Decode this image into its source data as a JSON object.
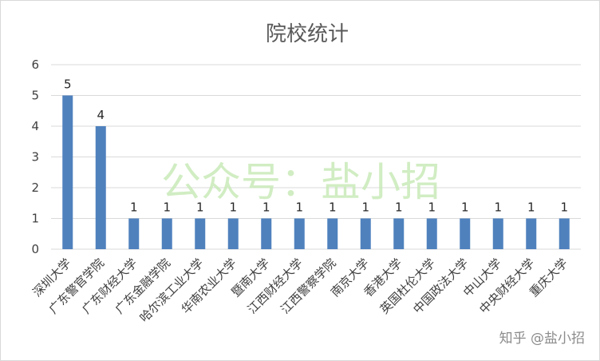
{
  "chart_data": {
    "type": "bar",
    "title": "院校统计",
    "categories": [
      "深圳大学",
      "广东警官学院",
      "广东财经大学",
      "广东金融学院",
      "哈尔滨工业大学",
      "华南农业大学",
      "暨南大学",
      "江西财经大学",
      "江西警察学院",
      "南京大学",
      "香港大学",
      "英国杜伦大学",
      "中国政法大学",
      "中山大学",
      "中央财经大学",
      "重庆大学"
    ],
    "values": [
      5,
      4,
      1,
      1,
      1,
      1,
      1,
      1,
      1,
      1,
      1,
      1,
      1,
      1,
      1,
      1
    ],
    "xlabel": "",
    "ylabel": "",
    "ylim": [
      0,
      6
    ],
    "yticks": [
      0,
      1,
      2,
      3,
      4,
      5,
      6
    ],
    "grid": true,
    "legend": "none",
    "bar_color": "#4f81bd",
    "grid_color": "#d9d9d9"
  },
  "watermark": {
    "text": "公众号：盐小招",
    "color": "#c9ebb9"
  },
  "credit": "知乎 @盐小招"
}
